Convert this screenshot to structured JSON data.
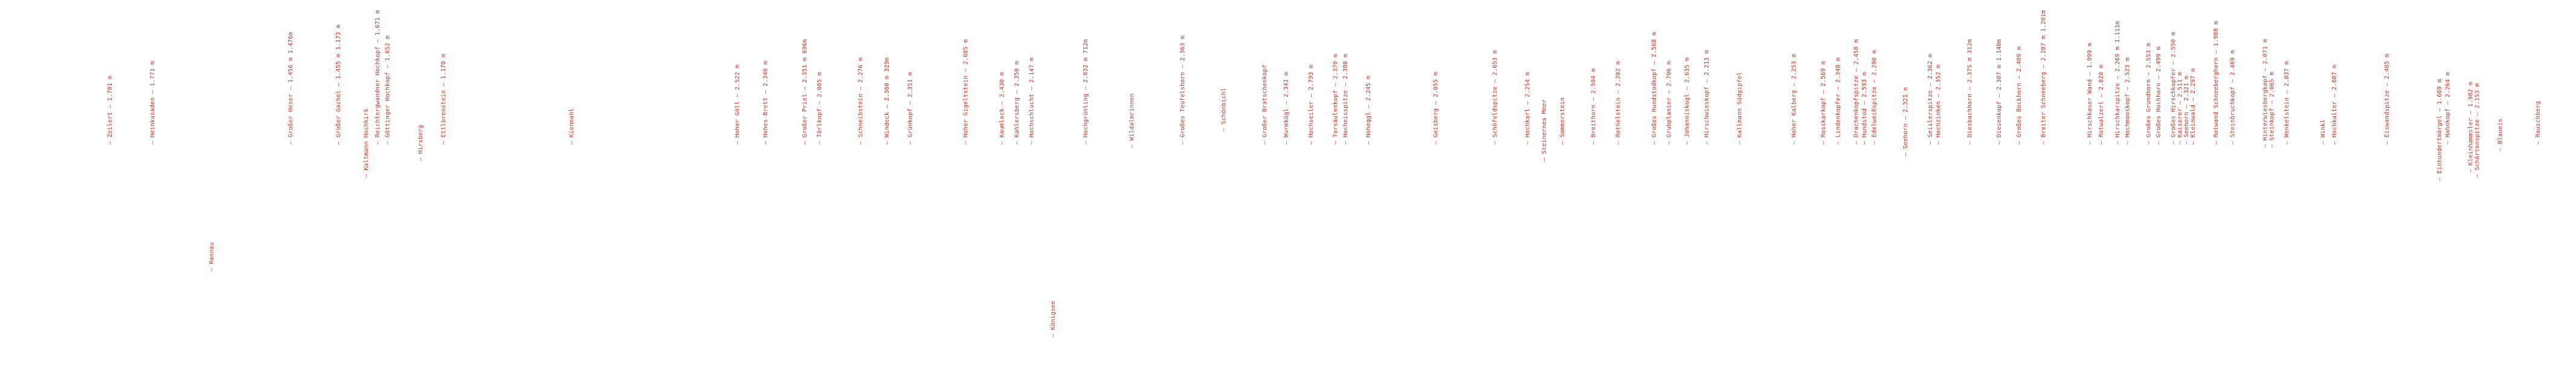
{
  "labels": [
    "— Zeilert – 1.701 m",
    "— Heinkusaden – 1.771 m",
    "— Rannau",
    "— Großer Heser – 1.456 m 1.476m",
    "— Großer Gachel – 1.455 m 1.173 m",
    "— Kaltmann Hochkirk",
    "— Reichtergwandner Hochkopf – 1.671 m",
    "— Göttinger Hochkopf – 1.652 m",
    "— Hirsberg",
    "— Ettlbrenstein – 1.170 m",
    "— Kienmahl",
    "— Hoher Göll – 2.522 m",
    "— Hohes Brett – 2.340 m",
    "— Großer Priel – 2.351 m 696m",
    "— Törlkopf – 2.005 m",
    "— Schneibstein – 2.276 m",
    "— Windeck – 2.360 m 329m",
    "— Grünkopf – 2.351 m",
    "— Hoher Gigeltstein – 2.085 m",
    "— Kaumleck – 2.430 m",
    "— Kahlersberg – 2.350 m",
    "— Hochschlucht – 2.147 m",
    "— Königsee",
    "— Hochgrünling – 2.032 m 712m",
    "— Wildalmrinnen",
    "— Großes Teufelshorn – 2.363 m",
    "— Schönbichl",
    "— Großer Bratschenkopf",
    "— Wurmkögl – 2.341 m",
    "— Hochseiler – 2.793 m",
    "— Torsäulenkopf – 2.370 m",
    "— Hocheisspitze – 2.380 m",
    "— Hoheggl – 2.245 m",
    "— Geisberg – 2.055 m",
    "— Schöfeldspitze – 2.653 m",
    "— Hochkarl – 2.254 m",
    "— Steinernes Meer",
    "— Sommerstein",
    "— Breithorn – 2.504 m",
    "— Rothelstein – 2.202 m",
    "— Großes Hundstodkopf – 2.568 m",
    "— Grubplanier – 2.706 m",
    "— Johanniskogl – 2.635 m",
    "— Hirschwieskopf – 2.213 m",
    "— Kallmann Südgipfel",
    "— Hoher Kalberg – 2.253 m",
    "— Rosskarkopf – 2.569 m",
    "— Lindenkopfer – 2.348 m",
    "— Drachenkopfspitze – 2.458 m",
    "— Hundstod – 2.593 m",
    "— Edelweißspitze – 2.290 m",
    "— Seehorn – 2.321 m",
    "— Seislerspitze – 2.362 m",
    "— Hochzinken – 2.352 m",
    "— Diesbachhorn – 2.375 m 312m",
    "— Diesenkopf – 2.307 m 1.140m",
    "— Großes Bockhorn – 2.409 m",
    "— Breiter Schneeberg – 2.287 m 1.201m",
    "— Hirschkaser Wand – 1.999 m",
    "— Rotwalzerl – 2.020 m",
    "— Hirschkarspitze – 2.269 m 1.111m",
    "— Hochmooskopf – 2.523 m",
    "— Großes Grundhorn – 2.553 m",
    "— Großes Hochhorn – 2.499 m",
    "— Großes Hirschkopfer – 2.550 m",
    "— Kaiserer – 2.511 m",
    "— Seehorn – 2.321 m",
    "— Kleinwald – 2.297 m",
    "— Rotwand Schneeberghorn – 1.988 m",
    "— Steinbruchkopf – 2.469 m",
    "— Hinterwiesbergkopf – 2.071 m",
    "— Steinkopf – 2.065 m",
    "— Wenkelstein – 2.037 m",
    "— Winkl",
    "— Hochkalter – 2.607 m",
    "— Eiswandspitze – 2.405 m",
    "— Einhundertmörgel – 1.669 m",
    "— Hahnkopf – 2.264 m",
    "— Kleinhammsler – 1.982 m",
    "— Schärtenspitze – 2.153 m",
    "— Blaueis",
    "— Rauschberg"
  ]
}
